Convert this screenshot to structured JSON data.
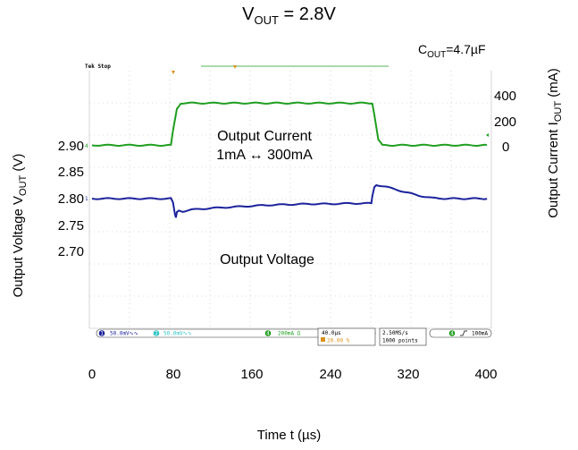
{
  "title": {
    "main": "V",
    "sub": "OUT",
    "rest": " = 2.8V"
  },
  "cout": {
    "main": "C",
    "sub": "OUT",
    "rest": "=4.7µF"
  },
  "scope": {
    "stop_label": "Tek Stop",
    "ch1_scale": "50.0mV∿∿",
    "ch2_scale": "50.0mV∿∿",
    "ch4_scale": "200mA Ω",
    "timebase": "40.0µs",
    "trigger_pos": "20.00 %",
    "sample_rate": "2.50MS/s",
    "record_length": "1000 points",
    "trigger_level": "100mA",
    "ch_nums": [
      "1",
      "2",
      "4",
      "4"
    ]
  },
  "annotations": {
    "current_line1": "Output Current",
    "current_line2": "1mA ↔ 300mA",
    "voltage": "Output Voltage"
  },
  "colors": {
    "current": "#1f9e1f",
    "voltage": "#1c239c",
    "grid": "#b8b8b8",
    "trigger": "#d9921a"
  },
  "chart_data": {
    "type": "line",
    "x": {
      "label": "Time t (µs)",
      "ticks": [
        "0",
        "80",
        "160",
        "240",
        "320",
        "400"
      ],
      "range": [
        0,
        400
      ]
    },
    "y_left": {
      "label": "Output Voltage V",
      "label_sub": "OUT",
      "label_unit": " (V)",
      "ticks": [
        "2.90",
        "2.85",
        "2.80",
        "2.75",
        "2.70"
      ],
      "tick_values": [
        2.9,
        2.85,
        2.8,
        2.75,
        2.7
      ]
    },
    "y_right": {
      "label": "Output Current I",
      "label_sub": "OUT",
      "label_unit": " (mA)",
      "ticks": [
        "400",
        "200",
        "0"
      ],
      "tick_values": [
        400,
        200,
        0
      ]
    },
    "series": [
      {
        "name": "Output Current",
        "axis": "right",
        "points": [
          [
            0,
            1
          ],
          [
            80,
            1
          ],
          [
            82,
            100
          ],
          [
            86,
            260
          ],
          [
            90,
            300
          ],
          [
            284,
            300
          ],
          [
            286,
            220
          ],
          [
            290,
            40
          ],
          [
            294,
            1
          ],
          [
            400,
            1
          ]
        ]
      },
      {
        "name": "Output Voltage",
        "axis": "left",
        "points": [
          [
            0,
            2.8
          ],
          [
            80,
            2.8
          ],
          [
            82,
            2.792
          ],
          [
            84,
            2.77
          ],
          [
            85,
            2.764
          ],
          [
            86,
            2.775
          ],
          [
            88,
            2.778
          ],
          [
            90,
            2.777
          ],
          [
            92,
            2.776
          ],
          [
            100,
            2.779
          ],
          [
            120,
            2.782
          ],
          [
            140,
            2.784
          ],
          [
            160,
            2.786
          ],
          [
            180,
            2.788
          ],
          [
            200,
            2.789
          ],
          [
            220,
            2.79
          ],
          [
            240,
            2.79
          ],
          [
            260,
            2.791
          ],
          [
            283,
            2.791
          ],
          [
            284,
            2.805
          ],
          [
            286,
            2.822
          ],
          [
            288,
            2.826
          ],
          [
            296,
            2.823
          ],
          [
            310,
            2.816
          ],
          [
            330,
            2.806
          ],
          [
            345,
            2.801
          ],
          [
            360,
            2.8
          ],
          [
            400,
            2.8
          ]
        ]
      }
    ]
  }
}
